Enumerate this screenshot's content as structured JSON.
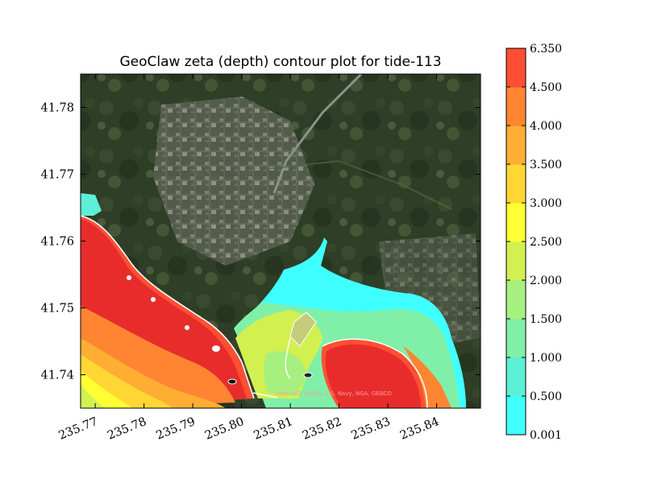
{
  "chart_data": {
    "type": "heatmap",
    "title": "GeoClaw zeta (depth) contour plot for tide-113",
    "xlabel": "",
    "ylabel": "",
    "xlim": [
      235.767,
      235.849
    ],
    "ylim": [
      41.735,
      41.785
    ],
    "x_ticks": [
      {
        "value": 235.77,
        "label": "235.77"
      },
      {
        "value": 235.78,
        "label": "235.78"
      },
      {
        "value": 235.79,
        "label": "235.79"
      },
      {
        "value": 235.8,
        "label": "235.80"
      },
      {
        "value": 235.81,
        "label": "235.81"
      },
      {
        "value": 235.82,
        "label": "235.82"
      },
      {
        "value": 235.83,
        "label": "235.83"
      },
      {
        "value": 235.84,
        "label": "235.84"
      }
    ],
    "y_ticks": [
      {
        "value": 41.74,
        "label": "41.74"
      },
      {
        "value": 41.75,
        "label": "41.75"
      },
      {
        "value": 41.76,
        "label": "41.76"
      },
      {
        "value": 41.77,
        "label": "41.77"
      },
      {
        "value": 41.78,
        "label": "41.78"
      }
    ],
    "colorbar": {
      "levels": [
        "0.001",
        "0.500",
        "1.000",
        "1.500",
        "2.000",
        "2.500",
        "3.000",
        "3.500",
        "4.000",
        "4.500",
        "6.350"
      ],
      "colors": [
        "#40ffff",
        "#5cf0d6",
        "#80f0a8",
        "#a6f080",
        "#d2f050",
        "#ffff33",
        "#ffd633",
        "#ffae33",
        "#ff8533",
        "#ff4f33"
      ]
    },
    "attribution": "Data SIO, NOAA, U.S. Navy, NGA, GEBCO",
    "grid": false,
    "background": "satellite imagery"
  }
}
